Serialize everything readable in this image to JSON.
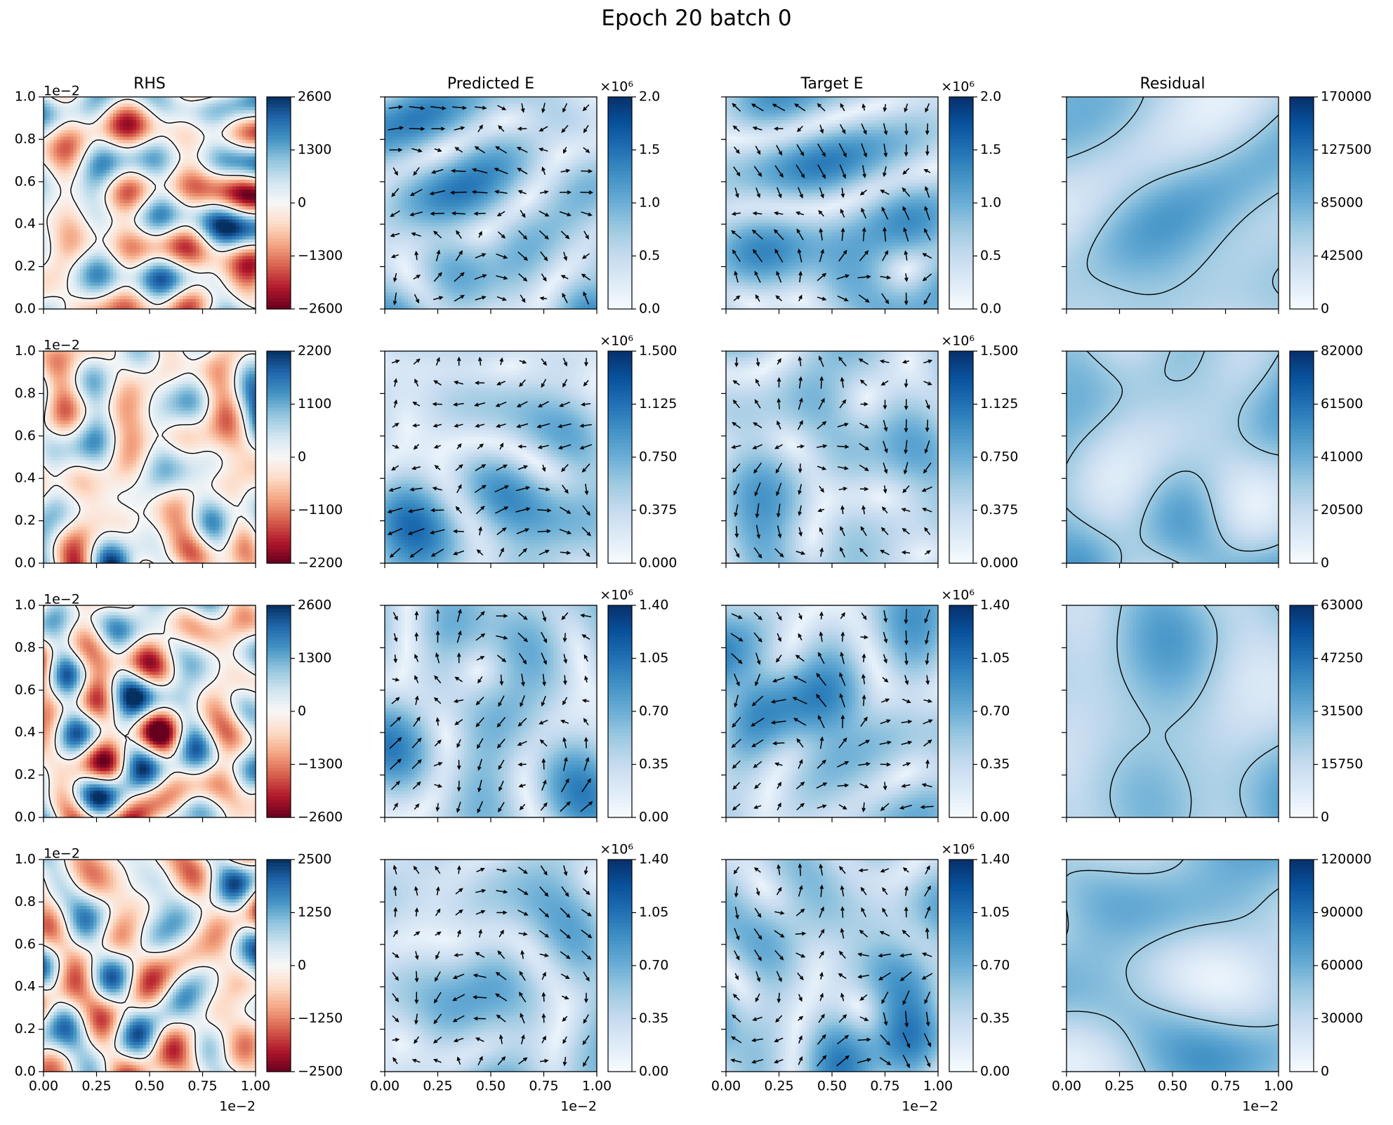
{
  "suptitle": "Epoch 20 batch 0",
  "column_titles": [
    "RHS",
    "Predicted E",
    "Target E",
    "Residual"
  ],
  "axis_offset_text": "1e−2",
  "colorbar_multiplier": "×10⁶",
  "axis_ticks": [
    "0.0",
    "0.2",
    "0.4",
    "0.6",
    "0.8",
    "1.0"
  ],
  "bottom_ticks": [
    "0.00",
    "0.25",
    "0.50",
    "0.75",
    "1.00"
  ],
  "colors": {
    "rdbu": [
      "#67001f",
      "#b2182b",
      "#d6604d",
      "#f4a582",
      "#fddbc7",
      "#f7f7f7",
      "#d1e5f0",
      "#92c5de",
      "#4393c3",
      "#2166ac",
      "#053061"
    ],
    "blues": [
      "#f7fbff",
      "#deebf7",
      "#c6dbef",
      "#9ecae1",
      "#6baed6",
      "#4292c6",
      "#2171b5",
      "#08519c",
      "#08306b"
    ]
  },
  "chart_data": [
    {
      "type": "heatmap",
      "row": 0,
      "title": "RHS",
      "colormap": "RdBu",
      "contours": true,
      "xlim": [
        0,
        1
      ],
      "ylim": [
        0,
        1
      ],
      "scale": "1e-2",
      "colorbar": {
        "min": -2600,
        "max": 2600,
        "ticks": [
          "−2600",
          "−1300",
          "0",
          "1300",
          "2600"
        ]
      }
    },
    {
      "type": "heatmap",
      "row": 0,
      "title": "Predicted E",
      "colormap": "Blues",
      "quiver": true,
      "xlim": [
        0,
        1
      ],
      "ylim": [
        0,
        1
      ],
      "scale": "1e-2",
      "colorbar": {
        "min": 0,
        "max": 2.0,
        "multiplier": "1e6",
        "ticks": [
          "0.0",
          "0.5",
          "1.0",
          "1.5",
          "2.0"
        ]
      }
    },
    {
      "type": "heatmap",
      "row": 0,
      "title": "Target E",
      "colormap": "Blues",
      "quiver": true,
      "xlim": [
        0,
        1
      ],
      "ylim": [
        0,
        1
      ],
      "scale": "1e-2",
      "colorbar": {
        "min": 0,
        "max": 2.0,
        "multiplier": "1e6",
        "ticks": [
          "0.0",
          "0.5",
          "1.0",
          "1.5",
          "2.0"
        ]
      }
    },
    {
      "type": "heatmap",
      "row": 0,
      "title": "Residual",
      "colormap": "Blues",
      "contours": true,
      "xlim": [
        0,
        1
      ],
      "ylim": [
        0,
        1
      ],
      "scale": "1e-2",
      "colorbar": {
        "min": 0,
        "max": 170000,
        "ticks": [
          "0",
          "42500",
          "85000",
          "127500",
          "170000"
        ]
      }
    },
    {
      "type": "heatmap",
      "row": 1,
      "colormap": "RdBu",
      "contours": true,
      "xlim": [
        0,
        1
      ],
      "ylim": [
        0,
        1
      ],
      "scale": "1e-2",
      "colorbar": {
        "min": -2200,
        "max": 2200,
        "ticks": [
          "−2200",
          "−1100",
          "0",
          "1100",
          "2200"
        ]
      }
    },
    {
      "type": "heatmap",
      "row": 1,
      "colormap": "Blues",
      "quiver": true,
      "xlim": [
        0,
        1
      ],
      "ylim": [
        0,
        1
      ],
      "scale": "1e-2",
      "colorbar": {
        "min": 0,
        "max": 1.5,
        "multiplier": "1e6",
        "ticks": [
          "0.000",
          "0.375",
          "0.750",
          "1.125",
          "1.500"
        ]
      }
    },
    {
      "type": "heatmap",
      "row": 1,
      "colormap": "Blues",
      "quiver": true,
      "xlim": [
        0,
        1
      ],
      "ylim": [
        0,
        1
      ],
      "scale": "1e-2",
      "colorbar": {
        "min": 0,
        "max": 1.5,
        "multiplier": "1e6",
        "ticks": [
          "0.000",
          "0.375",
          "0.750",
          "1.125",
          "1.500"
        ]
      }
    },
    {
      "type": "heatmap",
      "row": 1,
      "colormap": "Blues",
      "contours": true,
      "xlim": [
        0,
        1
      ],
      "ylim": [
        0,
        1
      ],
      "scale": "1e-2",
      "colorbar": {
        "min": 0,
        "max": 82000,
        "ticks": [
          "0",
          "20500",
          "41000",
          "61500",
          "82000"
        ]
      }
    },
    {
      "type": "heatmap",
      "row": 2,
      "colormap": "RdBu",
      "contours": true,
      "xlim": [
        0,
        1
      ],
      "ylim": [
        0,
        1
      ],
      "scale": "1e-2",
      "colorbar": {
        "min": -2600,
        "max": 2600,
        "ticks": [
          "−2600",
          "−1300",
          "0",
          "1300",
          "2600"
        ]
      }
    },
    {
      "type": "heatmap",
      "row": 2,
      "colormap": "Blues",
      "quiver": true,
      "xlim": [
        0,
        1
      ],
      "ylim": [
        0,
        1
      ],
      "scale": "1e-2",
      "colorbar": {
        "min": 0,
        "max": 1.4,
        "multiplier": "1e6",
        "ticks": [
          "0.00",
          "0.35",
          "0.70",
          "1.05",
          "1.40"
        ]
      }
    },
    {
      "type": "heatmap",
      "row": 2,
      "colormap": "Blues",
      "quiver": true,
      "xlim": [
        0,
        1
      ],
      "ylim": [
        0,
        1
      ],
      "scale": "1e-2",
      "colorbar": {
        "min": 0,
        "max": 1.4,
        "multiplier": "1e6",
        "ticks": [
          "0.00",
          "0.35",
          "0.70",
          "1.05",
          "1.40"
        ]
      }
    },
    {
      "type": "heatmap",
      "row": 2,
      "colormap": "Blues",
      "contours": true,
      "xlim": [
        0,
        1
      ],
      "ylim": [
        0,
        1
      ],
      "scale": "1e-2",
      "colorbar": {
        "min": 0,
        "max": 63000,
        "ticks": [
          "0",
          "15750",
          "31500",
          "47250",
          "63000"
        ]
      }
    },
    {
      "type": "heatmap",
      "row": 3,
      "colormap": "RdBu",
      "contours": true,
      "xlim": [
        0,
        1
      ],
      "ylim": [
        0,
        1
      ],
      "scale": "1e-2",
      "colorbar": {
        "min": -2500,
        "max": 2500,
        "ticks": [
          "−2500",
          "−1250",
          "0",
          "1250",
          "2500"
        ]
      }
    },
    {
      "type": "heatmap",
      "row": 3,
      "colormap": "Blues",
      "quiver": true,
      "xlim": [
        0,
        1
      ],
      "ylim": [
        0,
        1
      ],
      "scale": "1e-2",
      "colorbar": {
        "min": 0,
        "max": 1.4,
        "multiplier": "1e6",
        "ticks": [
          "0.00",
          "0.35",
          "0.70",
          "1.05",
          "1.40"
        ]
      }
    },
    {
      "type": "heatmap",
      "row": 3,
      "colormap": "Blues",
      "quiver": true,
      "xlim": [
        0,
        1
      ],
      "ylim": [
        0,
        1
      ],
      "scale": "1e-2",
      "colorbar": {
        "min": 0,
        "max": 1.4,
        "multiplier": "1e6",
        "ticks": [
          "0.00",
          "0.35",
          "0.70",
          "1.05",
          "1.40"
        ]
      }
    },
    {
      "type": "heatmap",
      "row": 3,
      "colormap": "Blues",
      "contours": true,
      "xlim": [
        0,
        1
      ],
      "ylim": [
        0,
        1
      ],
      "scale": "1e-2",
      "colorbar": {
        "min": 0,
        "max": 120000,
        "ticks": [
          "0",
          "30000",
          "60000",
          "90000",
          "120000"
        ]
      }
    }
  ]
}
